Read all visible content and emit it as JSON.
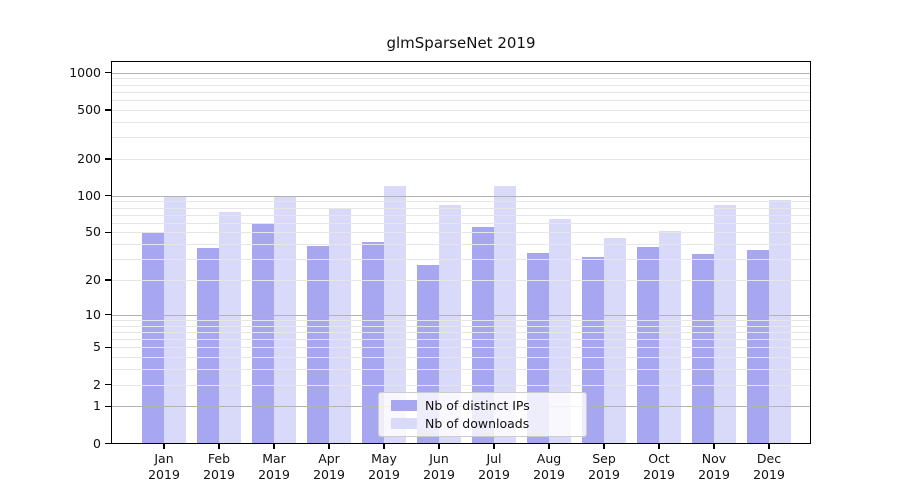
{
  "title": "glmSparseNet 2019",
  "chart_data": {
    "type": "bar",
    "title": "glmSparseNet 2019",
    "categories": [
      "Jan",
      "Feb",
      "Mar",
      "Apr",
      "May",
      "Jun",
      "Jul",
      "Aug",
      "Sep",
      "Oct",
      "Nov",
      "Dec"
    ],
    "year": "2019",
    "series": [
      {
        "name": "Nb of distinct IPs",
        "color": "#a7a7f1",
        "values": [
          50,
          37,
          60,
          39,
          42,
          27,
          56,
          34,
          31,
          38,
          33,
          36
        ]
      },
      {
        "name": "Nb of downloads",
        "color": "#d9d9fa",
        "values": [
          100,
          74,
          100,
          80,
          120,
          84,
          120,
          65,
          45,
          51,
          84,
          93
        ]
      }
    ],
    "y_ticks": [
      0,
      1,
      2,
      5,
      10,
      20,
      50,
      100,
      200,
      500,
      1000
    ],
    "y_scale": "log1p",
    "ylim": [
      0,
      1000
    ],
    "grid": true,
    "grid_major_values": [
      1,
      10,
      100,
      1000
    ],
    "grid_major_color": "#b2b2b2",
    "grid_minor_color": "#e6e6e6",
    "legend_position": "inside-bottom-center",
    "xlabel": "",
    "ylabel": ""
  }
}
